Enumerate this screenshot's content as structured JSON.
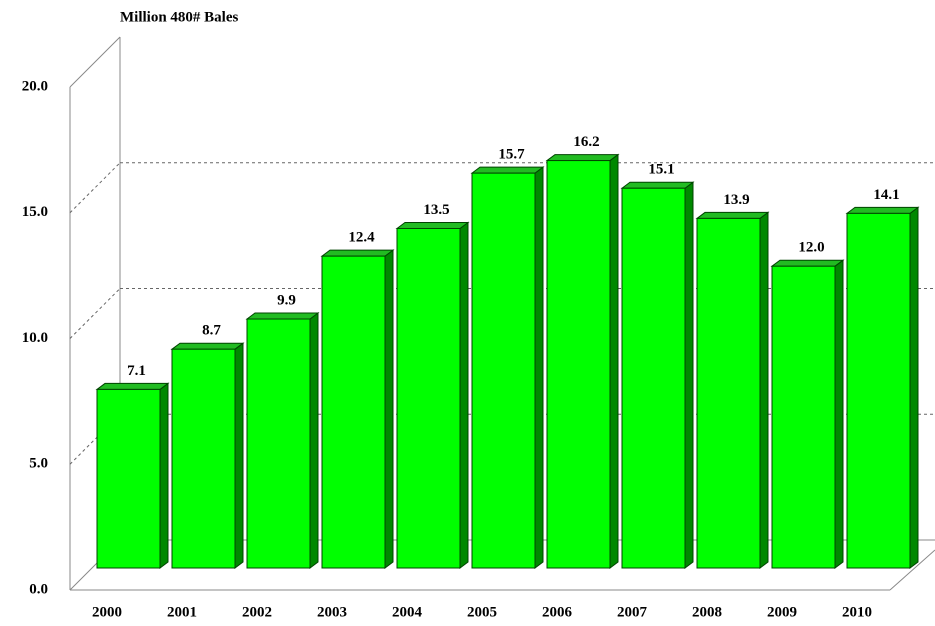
{
  "chart_data": {
    "type": "bar",
    "title": "Million 480# Bales",
    "categories": [
      "2000",
      "2001",
      "2002",
      "2003",
      "2004",
      "2005",
      "2006",
      "2007",
      "2008",
      "2009",
      "2010"
    ],
    "values": [
      7.1,
      8.7,
      9.9,
      12.4,
      13.5,
      15.7,
      16.2,
      15.1,
      13.9,
      12.0,
      14.1
    ],
    "value_labels": [
      "7.1",
      "8.7",
      "9.9",
      "12.4",
      "13.5",
      "15.7",
      "16.2",
      "15.1",
      "13.9",
      "12.0",
      "14.1"
    ],
    "color": "#00ff00",
    "ylim": [
      0,
      20
    ],
    "yticks": [
      {
        "value": 0,
        "label": "0.0"
      },
      {
        "value": 5,
        "label": "5.0"
      },
      {
        "value": 10,
        "label": "10.0"
      },
      {
        "value": 15,
        "label": "15.0"
      },
      {
        "value": 20,
        "label": "20.0"
      }
    ],
    "grid": true
  }
}
